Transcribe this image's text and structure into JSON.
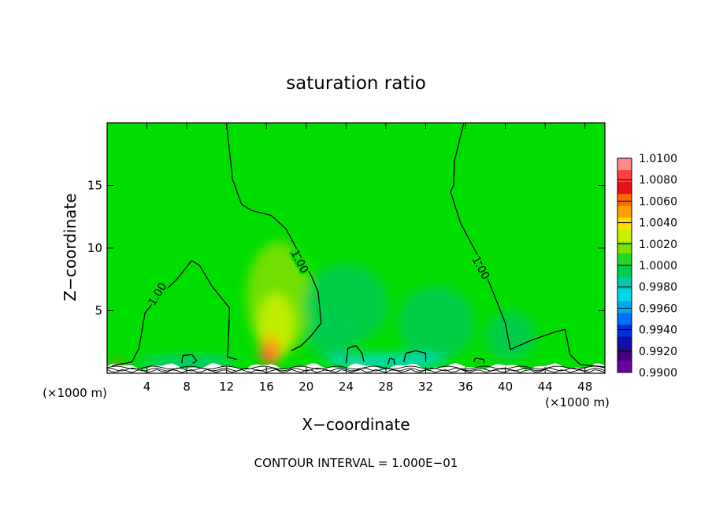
{
  "chart_data": {
    "type": "heatmap",
    "title": "saturation ratio",
    "xlabel": "X−coordinate",
    "ylabel": "Z−coordinate",
    "x_unit_left": "(×1000 m)",
    "x_unit_right": "(×1000 m)",
    "xlim": [
      0,
      50
    ],
    "ylim": [
      0,
      20
    ],
    "xticks": [
      4,
      8,
      12,
      16,
      20,
      24,
      28,
      32,
      36,
      40,
      44,
      48
    ],
    "yticks": [
      5,
      10,
      15
    ],
    "footer": "CONTOUR INTERVAL = 1.000E−01",
    "background_value": 1.0,
    "background_color": "#00de00",
    "contour_label": "1.00",
    "colorbar": {
      "levels": [
        "1.0100",
        "1.0080",
        "1.0060",
        "1.0040",
        "1.0020",
        "1.0000",
        "0.9980",
        "0.9960",
        "0.9940",
        "0.9920",
        "0.9900"
      ],
      "colors": [
        "#ff8a8a",
        "#ff4040",
        "#e81010",
        "#ff6a00",
        "#ffa000",
        "#ffe000",
        "#c8f000",
        "#7ee000",
        "#22d822",
        "#00cc50",
        "#00c8a8",
        "#00d8e8",
        "#00a8f0",
        "#0070f0",
        "#0030d8",
        "#1010a8",
        "#400080",
        "#6a00a0"
      ]
    },
    "blobs": [
      {
        "x": 17.2,
        "z": 6.0,
        "rx": 3.2,
        "rz": 4.5,
        "color": "#7ee000"
      },
      {
        "x": 17.0,
        "z": 3.8,
        "rx": 1.8,
        "rz": 2.6,
        "color": "#c8f000"
      },
      {
        "x": 16.4,
        "z": 1.8,
        "rx": 1.1,
        "rz": 1.2,
        "color": "#ffa000"
      },
      {
        "x": 16.2,
        "z": 1.4,
        "rx": 0.6,
        "rz": 0.6,
        "color": "#ff4040"
      },
      {
        "x": 24.0,
        "z": 5.5,
        "rx": 4.2,
        "rz": 3.2,
        "color": "#00cc50"
      },
      {
        "x": 33.0,
        "z": 4.0,
        "rx": 3.8,
        "rz": 3.0,
        "color": "#00cc50"
      },
      {
        "x": 22.5,
        "z": 3.0,
        "rx": 2.5,
        "rz": 1.8,
        "color": "#00cc50"
      },
      {
        "x": 40.5,
        "z": 3.0,
        "rx": 2.5,
        "rz": 2.0,
        "color": "#00cc50"
      },
      {
        "x": 25.2,
        "z": 0.9,
        "rx": 0.6,
        "rz": 0.4,
        "color": "#ffa000"
      },
      {
        "x": 1.0,
        "z": 0.8,
        "rx": 0.4,
        "rz": 0.35,
        "color": "#ff6a00"
      },
      {
        "x": 28.0,
        "z": 1.0,
        "rx": 6.0,
        "rz": 0.5,
        "color": "#00d8e8"
      },
      {
        "x": 8.0,
        "z": 0.9,
        "rx": 5.0,
        "rz": 0.4,
        "color": "#00c8a8"
      }
    ],
    "contours": [
      {
        "points": [
          [
            0.5,
            0.6
          ],
          [
            2.5,
            0.9
          ],
          [
            3.2,
            2.0
          ],
          [
            3.8,
            4.8
          ],
          [
            5.0,
            6.0
          ],
          [
            7.0,
            7.5
          ],
          [
            8.5,
            9.0
          ],
          [
            9.3,
            8.6
          ],
          [
            10.5,
            7.0
          ],
          [
            12.3,
            5.2
          ],
          [
            12.2,
            3.0
          ],
          [
            12.1,
            1.3
          ],
          [
            13.0,
            1.1
          ]
        ],
        "label": true,
        "label_x": 5.1,
        "label_z": 6.3,
        "label_angle": -58
      },
      {
        "points": [
          [
            12.0,
            19.9
          ],
          [
            12.6,
            15.5
          ],
          [
            13.5,
            13.5
          ],
          [
            14.5,
            13.0
          ],
          [
            16.5,
            12.6
          ],
          [
            18.0,
            11.5
          ],
          [
            19.0,
            10.0
          ],
          [
            20.5,
            7.8
          ],
          [
            21.2,
            6.5
          ],
          [
            21.5,
            4.0
          ],
          [
            20.5,
            3.0
          ],
          [
            19.5,
            2.2
          ],
          [
            18.5,
            1.8
          ]
        ],
        "label": true,
        "label_x": 19.3,
        "label_z": 8.9,
        "label_angle": 62
      },
      {
        "points": [
          [
            35.8,
            19.9
          ],
          [
            34.9,
            17.0
          ],
          [
            34.8,
            15.0
          ],
          [
            34.5,
            14.5
          ],
          [
            35.5,
            12.0
          ],
          [
            36.5,
            10.5
          ],
          [
            37.5,
            9.0
          ],
          [
            38.5,
            7.0
          ],
          [
            40.0,
            4.0
          ],
          [
            40.5,
            1.9
          ],
          [
            42.5,
            2.6
          ],
          [
            45.0,
            3.3
          ],
          [
            46.0,
            3.5
          ],
          [
            46.5,
            1.5
          ],
          [
            47.5,
            0.7
          ],
          [
            50.0,
            0.5
          ]
        ],
        "label": true,
        "label_x": 37.5,
        "label_z": 8.4,
        "label_angle": 62
      },
      {
        "points": [
          [
            7.5,
            0.8
          ],
          [
            7.6,
            1.4
          ],
          [
            8.5,
            1.5
          ],
          [
            9.0,
            1.0
          ],
          [
            8.6,
            0.8
          ]
        ],
        "label": false
      },
      {
        "points": [
          [
            24.0,
            0.8
          ],
          [
            24.2,
            2.0
          ],
          [
            25.0,
            2.2
          ],
          [
            25.6,
            1.6
          ],
          [
            25.8,
            0.9
          ]
        ],
        "label": false
      },
      {
        "points": [
          [
            29.8,
            0.9
          ],
          [
            30.0,
            1.6
          ],
          [
            31.0,
            1.8
          ],
          [
            32.0,
            1.6
          ],
          [
            32.0,
            0.9
          ]
        ],
        "label": false
      },
      {
        "points": [
          [
            28.2,
            0.7
          ],
          [
            28.4,
            1.2
          ],
          [
            28.8,
            1.1
          ],
          [
            28.9,
            0.7
          ]
        ],
        "label": false
      },
      {
        "points": [
          [
            36.8,
            0.9
          ],
          [
            37.0,
            1.2
          ],
          [
            37.8,
            1.1
          ],
          [
            37.9,
            0.8
          ]
        ],
        "label": false
      }
    ]
  }
}
